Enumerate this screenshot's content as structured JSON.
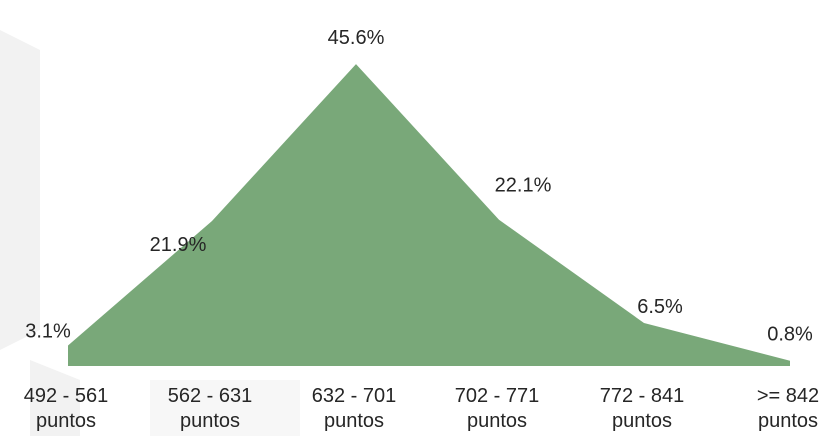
{
  "chart_data": {
    "type": "area",
    "title": "",
    "xlabel": "",
    "ylabel": "",
    "ylim": [
      0,
      50
    ],
    "grid": false,
    "legend": "none",
    "color": "#79a879",
    "categories": [
      [
        "492 - 561",
        "puntos"
      ],
      [
        "562 - 631",
        "puntos"
      ],
      [
        "632 - 701",
        "puntos"
      ],
      [
        "702 - 771",
        "puntos"
      ],
      [
        "772 - 841",
        "puntos"
      ],
      [
        ">= 842",
        "puntos"
      ]
    ],
    "values": [
      3.1,
      21.9,
      45.6,
      22.1,
      6.5,
      0.8
    ],
    "data_labels": [
      "3.1%",
      "21.9%",
      "45.6%",
      "22.1%",
      "6.5%",
      "0.8%"
    ]
  }
}
